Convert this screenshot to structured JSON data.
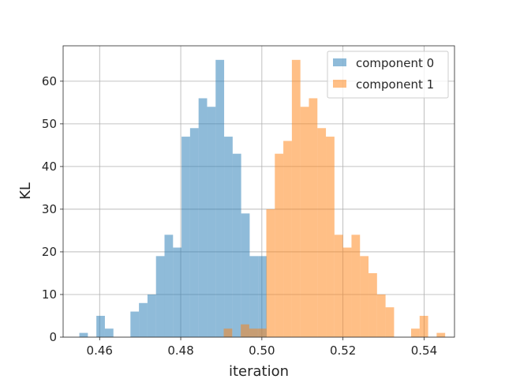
{
  "chart_data": {
    "type": "bar",
    "xlabel": "iteration",
    "ylabel": "KL",
    "xlim": [
      0.451,
      0.5475
    ],
    "ylim": [
      0,
      68.3
    ],
    "x_ticks": [
      0.46,
      0.48,
      0.5,
      0.52,
      0.54
    ],
    "x_tick_labels": [
      "0.46",
      "0.48",
      "0.50",
      "0.52",
      "0.54"
    ],
    "y_ticks": [
      0,
      10,
      20,
      30,
      40,
      50,
      60
    ],
    "y_tick_labels": [
      "0",
      "10",
      "20",
      "30",
      "40",
      "50",
      "60"
    ],
    "grid": true,
    "legend_position": "top-right",
    "series": [
      {
        "name": "component 0",
        "color": "#1f77b4",
        "alpha": 0.5,
        "bin_edges": [
          0.455,
          0.4571,
          0.4592,
          0.4613,
          0.4634,
          0.4655,
          0.4676,
          0.4697,
          0.4718,
          0.4739,
          0.476,
          0.4781,
          0.4802,
          0.4823,
          0.4844,
          0.4865,
          0.4886,
          0.4907,
          0.4928,
          0.4949,
          0.497,
          0.4991,
          0.5012
        ],
        "counts": [
          1,
          0,
          5,
          2,
          0,
          0,
          6,
          8,
          10,
          19,
          24,
          21,
          47,
          49,
          56,
          54,
          65,
          47,
          43,
          29,
          19,
          19
        ]
      },
      {
        "name": "component 1",
        "color": "#ff7f0e",
        "alpha": 0.5,
        "bin_edges": [
          0.4906,
          0.4927,
          0.4948,
          0.4969,
          0.499,
          0.5011,
          0.5032,
          0.5053,
          0.5074,
          0.5095,
          0.5116,
          0.5137,
          0.5158,
          0.5179,
          0.52,
          0.5221,
          0.5242,
          0.5263,
          0.5284,
          0.5305,
          0.5326,
          0.5347,
          0.5368,
          0.5389,
          0.541,
          0.5431,
          0.5452
        ],
        "counts": [
          2,
          0,
          3,
          2,
          2,
          30,
          43,
          46,
          65,
          54,
          56,
          49,
          47,
          24,
          21,
          24,
          19,
          15,
          10,
          7,
          0,
          0,
          2,
          5,
          0,
          1
        ]
      }
    ]
  }
}
